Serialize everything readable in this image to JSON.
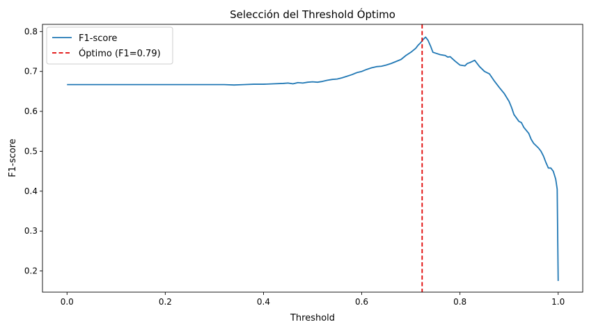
{
  "chart_data": {
    "type": "line",
    "title": "Selección del Threshold Óptimo",
    "xlabel": "Threshold",
    "ylabel": "F1-score",
    "xlim": [
      -0.05,
      1.05
    ],
    "ylim": [
      0.147,
      0.818
    ],
    "xticks": [
      0.0,
      0.2,
      0.4,
      0.6,
      0.8,
      1.0
    ],
    "xtick_labels": [
      "0.0",
      "0.2",
      "0.4",
      "0.6",
      "0.8",
      "1.0"
    ],
    "yticks": [
      0.2,
      0.3,
      0.4,
      0.5,
      0.6,
      0.7,
      0.8
    ],
    "ytick_labels": [
      "0.2",
      "0.3",
      "0.4",
      "0.5",
      "0.6",
      "0.7",
      "0.8"
    ],
    "grid": false,
    "legend_position": "upper-left",
    "series": [
      {
        "name": "F1-score",
        "color": "#1f77b4",
        "style": "solid",
        "x": [
          0.0,
          0.05,
          0.1,
          0.15,
          0.2,
          0.25,
          0.3,
          0.32,
          0.34,
          0.36,
          0.38,
          0.4,
          0.42,
          0.44,
          0.45,
          0.46,
          0.47,
          0.48,
          0.49,
          0.5,
          0.51,
          0.52,
          0.53,
          0.54,
          0.55,
          0.56,
          0.57,
          0.58,
          0.59,
          0.6,
          0.61,
          0.62,
          0.63,
          0.64,
          0.65,
          0.66,
          0.67,
          0.68,
          0.69,
          0.7,
          0.71,
          0.715,
          0.72,
          0.725,
          0.73,
          0.735,
          0.74,
          0.745,
          0.75,
          0.76,
          0.77,
          0.775,
          0.78,
          0.79,
          0.8,
          0.81,
          0.815,
          0.82,
          0.83,
          0.84,
          0.85,
          0.86,
          0.87,
          0.88,
          0.89,
          0.9,
          0.905,
          0.91,
          0.92,
          0.925,
          0.93,
          0.94,
          0.945,
          0.95,
          0.96,
          0.965,
          0.97,
          0.975,
          0.98,
          0.985,
          0.99,
          0.995,
          0.998,
          1.0
        ],
        "y": [
          0.667,
          0.667,
          0.667,
          0.667,
          0.667,
          0.667,
          0.667,
          0.667,
          0.666,
          0.667,
          0.668,
          0.668,
          0.669,
          0.67,
          0.671,
          0.669,
          0.672,
          0.671,
          0.673,
          0.674,
          0.673,
          0.675,
          0.678,
          0.68,
          0.681,
          0.684,
          0.688,
          0.692,
          0.697,
          0.7,
          0.705,
          0.709,
          0.712,
          0.713,
          0.716,
          0.72,
          0.725,
          0.73,
          0.74,
          0.748,
          0.758,
          0.766,
          0.772,
          0.78,
          0.786,
          0.778,
          0.764,
          0.748,
          0.746,
          0.742,
          0.74,
          0.736,
          0.737,
          0.726,
          0.716,
          0.714,
          0.72,
          0.722,
          0.728,
          0.712,
          0.7,
          0.694,
          0.676,
          0.66,
          0.645,
          0.625,
          0.61,
          0.592,
          0.575,
          0.572,
          0.56,
          0.545,
          0.53,
          0.52,
          0.508,
          0.5,
          0.488,
          0.472,
          0.458,
          0.458,
          0.45,
          0.43,
          0.405,
          0.175
        ]
      },
      {
        "name": "Óptimo (F1=0.79)",
        "color": "#e00000",
        "style": "dashed",
        "vline_x": 0.723
      }
    ]
  }
}
